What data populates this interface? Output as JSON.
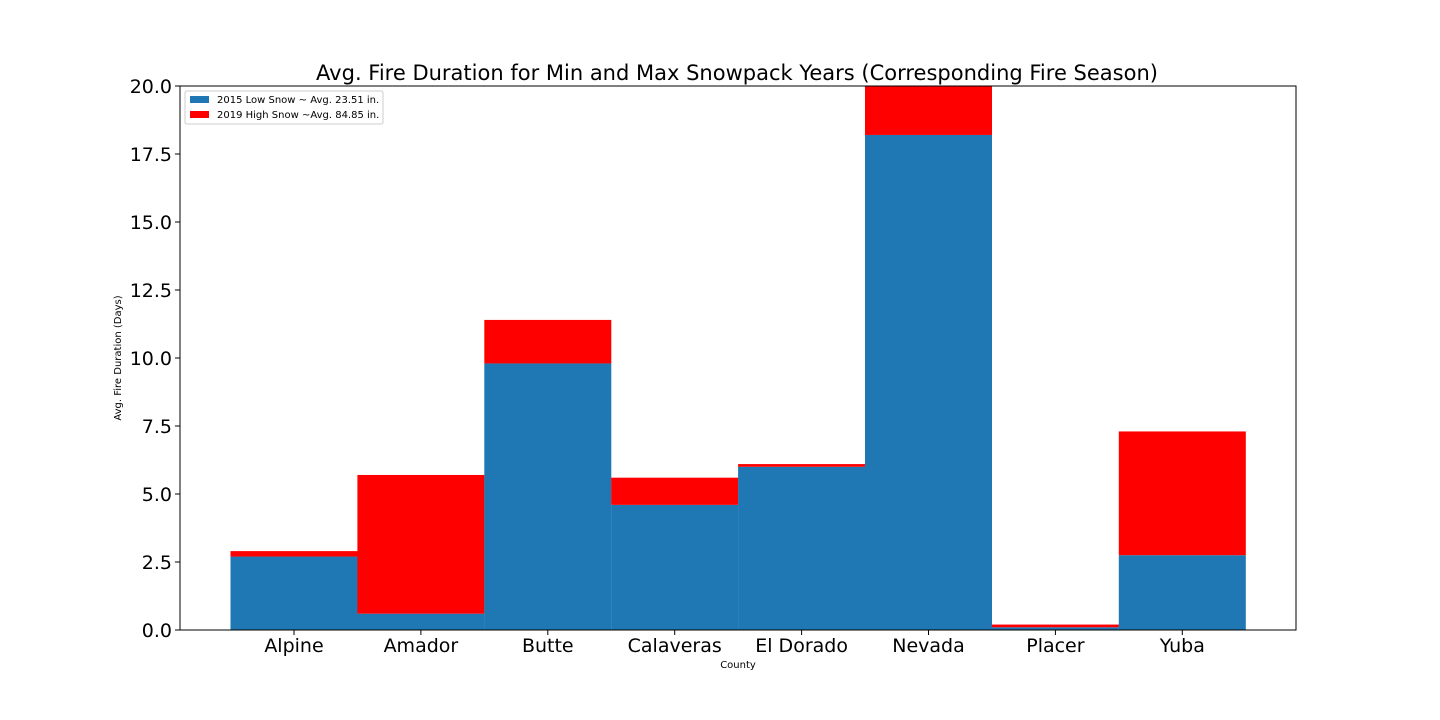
{
  "chart_data": {
    "type": "bar",
    "stacked": true,
    "title": "Avg. Fire Duration for Min and Max Snowpack Years (Corresponding Fire Season)",
    "xlabel": "County",
    "ylabel": "Avg. Fire Duration (Days)",
    "ylim": [
      0,
      20
    ],
    "yticks": [
      0.0,
      2.5,
      5.0,
      7.5,
      10.0,
      12.5,
      15.0,
      17.5,
      20.0
    ],
    "ytick_labels": [
      "0.0",
      "2.5",
      "5.0",
      "7.5",
      "10.0",
      "12.5",
      "15.0",
      "17.5",
      "20.0"
    ],
    "grid": false,
    "legend_position": "top-left",
    "categories": [
      "Alpine",
      "Amador",
      "Butte",
      "Calaveras",
      "El Dorado",
      "Nevada",
      "Placer",
      "Yuba"
    ],
    "series": [
      {
        "name": "2015 Low Snow ~ Avg. 23.51 in.",
        "color": "#1f77b4",
        "values": [
          2.7,
          0.6,
          9.8,
          4.6,
          6.0,
          18.2,
          0.1,
          2.75
        ]
      },
      {
        "name": "2019 High Snow ~Avg. 84.85 in.",
        "color": "#ff0000",
        "values": [
          0.2,
          5.1,
          1.6,
          1.0,
          0.1,
          1.8,
          0.1,
          4.55
        ]
      }
    ]
  }
}
